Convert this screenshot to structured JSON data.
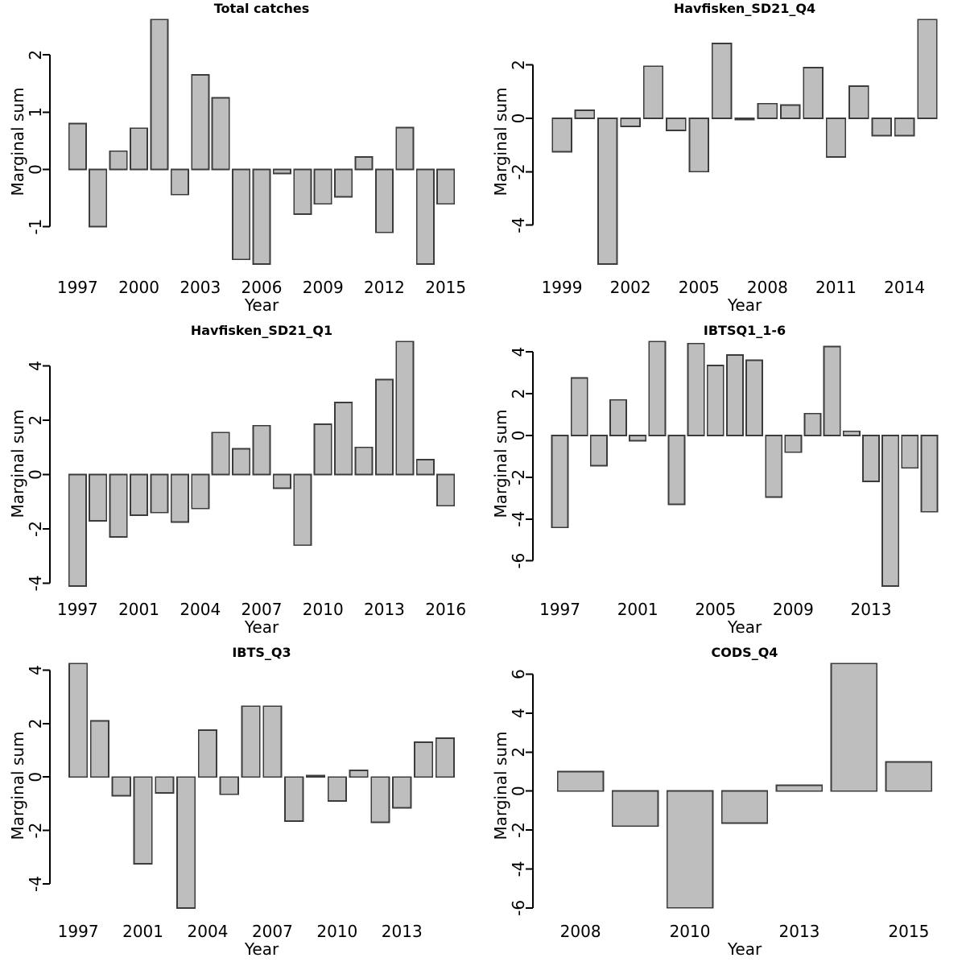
{
  "figure": {
    "background": "#ffffff",
    "rows": 3,
    "columns": 2
  },
  "styles": {
    "bar_fill": "#bebebe",
    "bar_border": "#3c3c3c",
    "axis_color": "#000000",
    "text_color": "#000000"
  },
  "chart_data": [
    {
      "type": "bar",
      "title": "Total catches",
      "xlabel": "Year",
      "ylabel": "Marginal sum",
      "categories": [
        "1997",
        "1998",
        "1999",
        "2000",
        "2001",
        "2002",
        "2003",
        "2004",
        "2005",
        "2006",
        "2007",
        "2008",
        "2009",
        "2010",
        "2011",
        "2012",
        "2013",
        "2014",
        "2015"
      ],
      "values": [
        0.8,
        -1.0,
        0.32,
        0.72,
        2.62,
        -0.44,
        1.65,
        1.25,
        -1.57,
        -1.65,
        -0.07,
        -0.78,
        -0.6,
        -0.48,
        0.22,
        -1.1,
        0.73,
        -1.65,
        -0.6
      ],
      "y_ticks": [
        -1,
        0,
        1,
        2
      ],
      "x_ticks": [
        {
          "bar": 0,
          "label": "1997"
        },
        {
          "bar": 3,
          "label": "2000"
        },
        {
          "bar": 6,
          "label": "2003"
        },
        {
          "bar": 9,
          "label": "2006"
        },
        {
          "bar": 12,
          "label": "2009"
        },
        {
          "bar": 15,
          "label": "2012"
        },
        {
          "bar": 18,
          "label": "2015"
        }
      ],
      "ylim": [
        -1.65,
        2.62
      ],
      "grid": false,
      "legend": null
    },
    {
      "type": "bar",
      "title": "Havfisken_SD21_Q4",
      "xlabel": "Year",
      "ylabel": "Marginal sum",
      "categories": [
        "1999",
        "2000",
        "2001",
        "2002",
        "2003",
        "2004",
        "2005",
        "2006",
        "2007",
        "2008",
        "2009",
        "2010",
        "2011",
        "2012",
        "2013",
        "2014",
        "2015"
      ],
      "values": [
        -1.25,
        0.3,
        -5.45,
        -0.3,
        1.95,
        -0.45,
        -2.0,
        2.8,
        -0.05,
        0.55,
        0.5,
        1.9,
        -1.45,
        1.2,
        -0.65,
        -0.65,
        3.7
      ],
      "y_ticks": [
        -4,
        -2,
        0,
        2
      ],
      "x_ticks": [
        {
          "bar": 0,
          "label": "1999"
        },
        {
          "bar": 3,
          "label": "2002"
        },
        {
          "bar": 6,
          "label": "2005"
        },
        {
          "bar": 9,
          "label": "2008"
        },
        {
          "bar": 12,
          "label": "2011"
        },
        {
          "bar": 15,
          "label": "2014"
        }
      ],
      "ylim": [
        -5.45,
        3.7
      ],
      "grid": false,
      "legend": null
    },
    {
      "type": "bar",
      "title": "Havfisken_SD21_Q1",
      "xlabel": "Year",
      "ylabel": "Marginal sum",
      "categories": [
        "1997",
        "1998",
        "1999",
        "2001",
        "2002",
        "2003",
        "2004",
        "2005",
        "2006",
        "2007",
        "2008",
        "2009",
        "2010",
        "2011",
        "2012",
        "2013",
        "2014",
        "2015",
        "2016"
      ],
      "values": [
        -4.1,
        -1.7,
        -2.3,
        -1.5,
        -1.4,
        -1.75,
        -1.25,
        1.55,
        0.95,
        1.8,
        -0.5,
        -2.6,
        1.85,
        2.65,
        1.0,
        3.5,
        4.9,
        0.55,
        -1.15
      ],
      "y_ticks": [
        -4,
        -2,
        0,
        2,
        4
      ],
      "x_ticks": [
        {
          "bar": 0,
          "label": "1997"
        },
        {
          "bar": 3,
          "label": "2001"
        },
        {
          "bar": 6,
          "label": "2004"
        },
        {
          "bar": 9,
          "label": "2007"
        },
        {
          "bar": 12,
          "label": "2010"
        },
        {
          "bar": 15,
          "label": "2013"
        },
        {
          "bar": 18,
          "label": "2016"
        }
      ],
      "ylim": [
        -4.1,
        4.9
      ],
      "grid": false,
      "legend": null
    },
    {
      "type": "bar",
      "title": "IBTSQ1_1-6",
      "xlabel": "Year",
      "ylabel": "Marginal sum",
      "categories": [
        "1997",
        "1998",
        "1999",
        "2000",
        "2001",
        "2002",
        "2003",
        "2004",
        "2005",
        "2006",
        "2007",
        "2008",
        "2009",
        "2010",
        "2011",
        "2012",
        "2013",
        "2014",
        "2015",
        "2016"
      ],
      "values": [
        -4.4,
        2.75,
        -1.45,
        1.7,
        -0.25,
        4.5,
        -3.3,
        4.4,
        3.35,
        3.85,
        3.6,
        -2.95,
        -0.8,
        1.05,
        4.25,
        0.2,
        -2.2,
        -7.2,
        -1.55,
        -3.65
      ],
      "y_ticks": [
        -6,
        -4,
        -2,
        0,
        2,
        4
      ],
      "x_ticks": [
        {
          "bar": 0,
          "label": "1997"
        },
        {
          "bar": 4,
          "label": "2001"
        },
        {
          "bar": 8,
          "label": "2005"
        },
        {
          "bar": 12,
          "label": "2009"
        },
        {
          "bar": 16,
          "label": "2013"
        }
      ],
      "ylim": [
        -7.2,
        4.5
      ],
      "grid": false,
      "legend": null
    },
    {
      "type": "bar",
      "title": "IBTS_Q3",
      "xlabel": "Year",
      "ylabel": "Marginal sum",
      "categories": [
        "1997",
        "1998",
        "1999",
        "2001",
        "2002",
        "2003",
        "2004",
        "2005",
        "2006",
        "2007",
        "2008",
        "2009",
        "2010",
        "2011",
        "2012",
        "2013",
        "2014",
        "2015"
      ],
      "values": [
        4.25,
        2.1,
        -0.7,
        -3.25,
        -0.6,
        -4.9,
        1.75,
        -0.65,
        2.65,
        2.65,
        -1.65,
        0.05,
        -0.9,
        0.25,
        -1.7,
        -1.15,
        1.3,
        1.45
      ],
      "y_ticks": [
        -4,
        -2,
        0,
        2,
        4
      ],
      "x_ticks": [
        {
          "bar": 0,
          "label": "1997"
        },
        {
          "bar": 3,
          "label": "2001"
        },
        {
          "bar": 6,
          "label": "2004"
        },
        {
          "bar": 9,
          "label": "2007"
        },
        {
          "bar": 12,
          "label": "2010"
        },
        {
          "bar": 15,
          "label": "2013"
        }
      ],
      "ylim": [
        -4.9,
        4.25
      ],
      "grid": false,
      "legend": null
    },
    {
      "type": "bar",
      "title": "CODS_Q4",
      "xlabel": "Year",
      "ylabel": "Marginal sum",
      "categories": [
        "2008",
        "2009",
        "2010",
        "2011",
        "2013",
        "2014",
        "2015"
      ],
      "values": [
        1.0,
        -1.8,
        -6.0,
        -1.65,
        0.3,
        6.55,
        1.5
      ],
      "y_ticks": [
        -6,
        -4,
        -2,
        0,
        2,
        4,
        6
      ],
      "x_ticks": [
        {
          "bar": 0,
          "label": "2008"
        },
        {
          "bar": 2,
          "label": "2010"
        },
        {
          "bar": 4,
          "label": "2013"
        },
        {
          "bar": 6,
          "label": "2015"
        }
      ],
      "ylim": [
        -6.0,
        6.55
      ],
      "grid": false,
      "legend": null
    }
  ]
}
